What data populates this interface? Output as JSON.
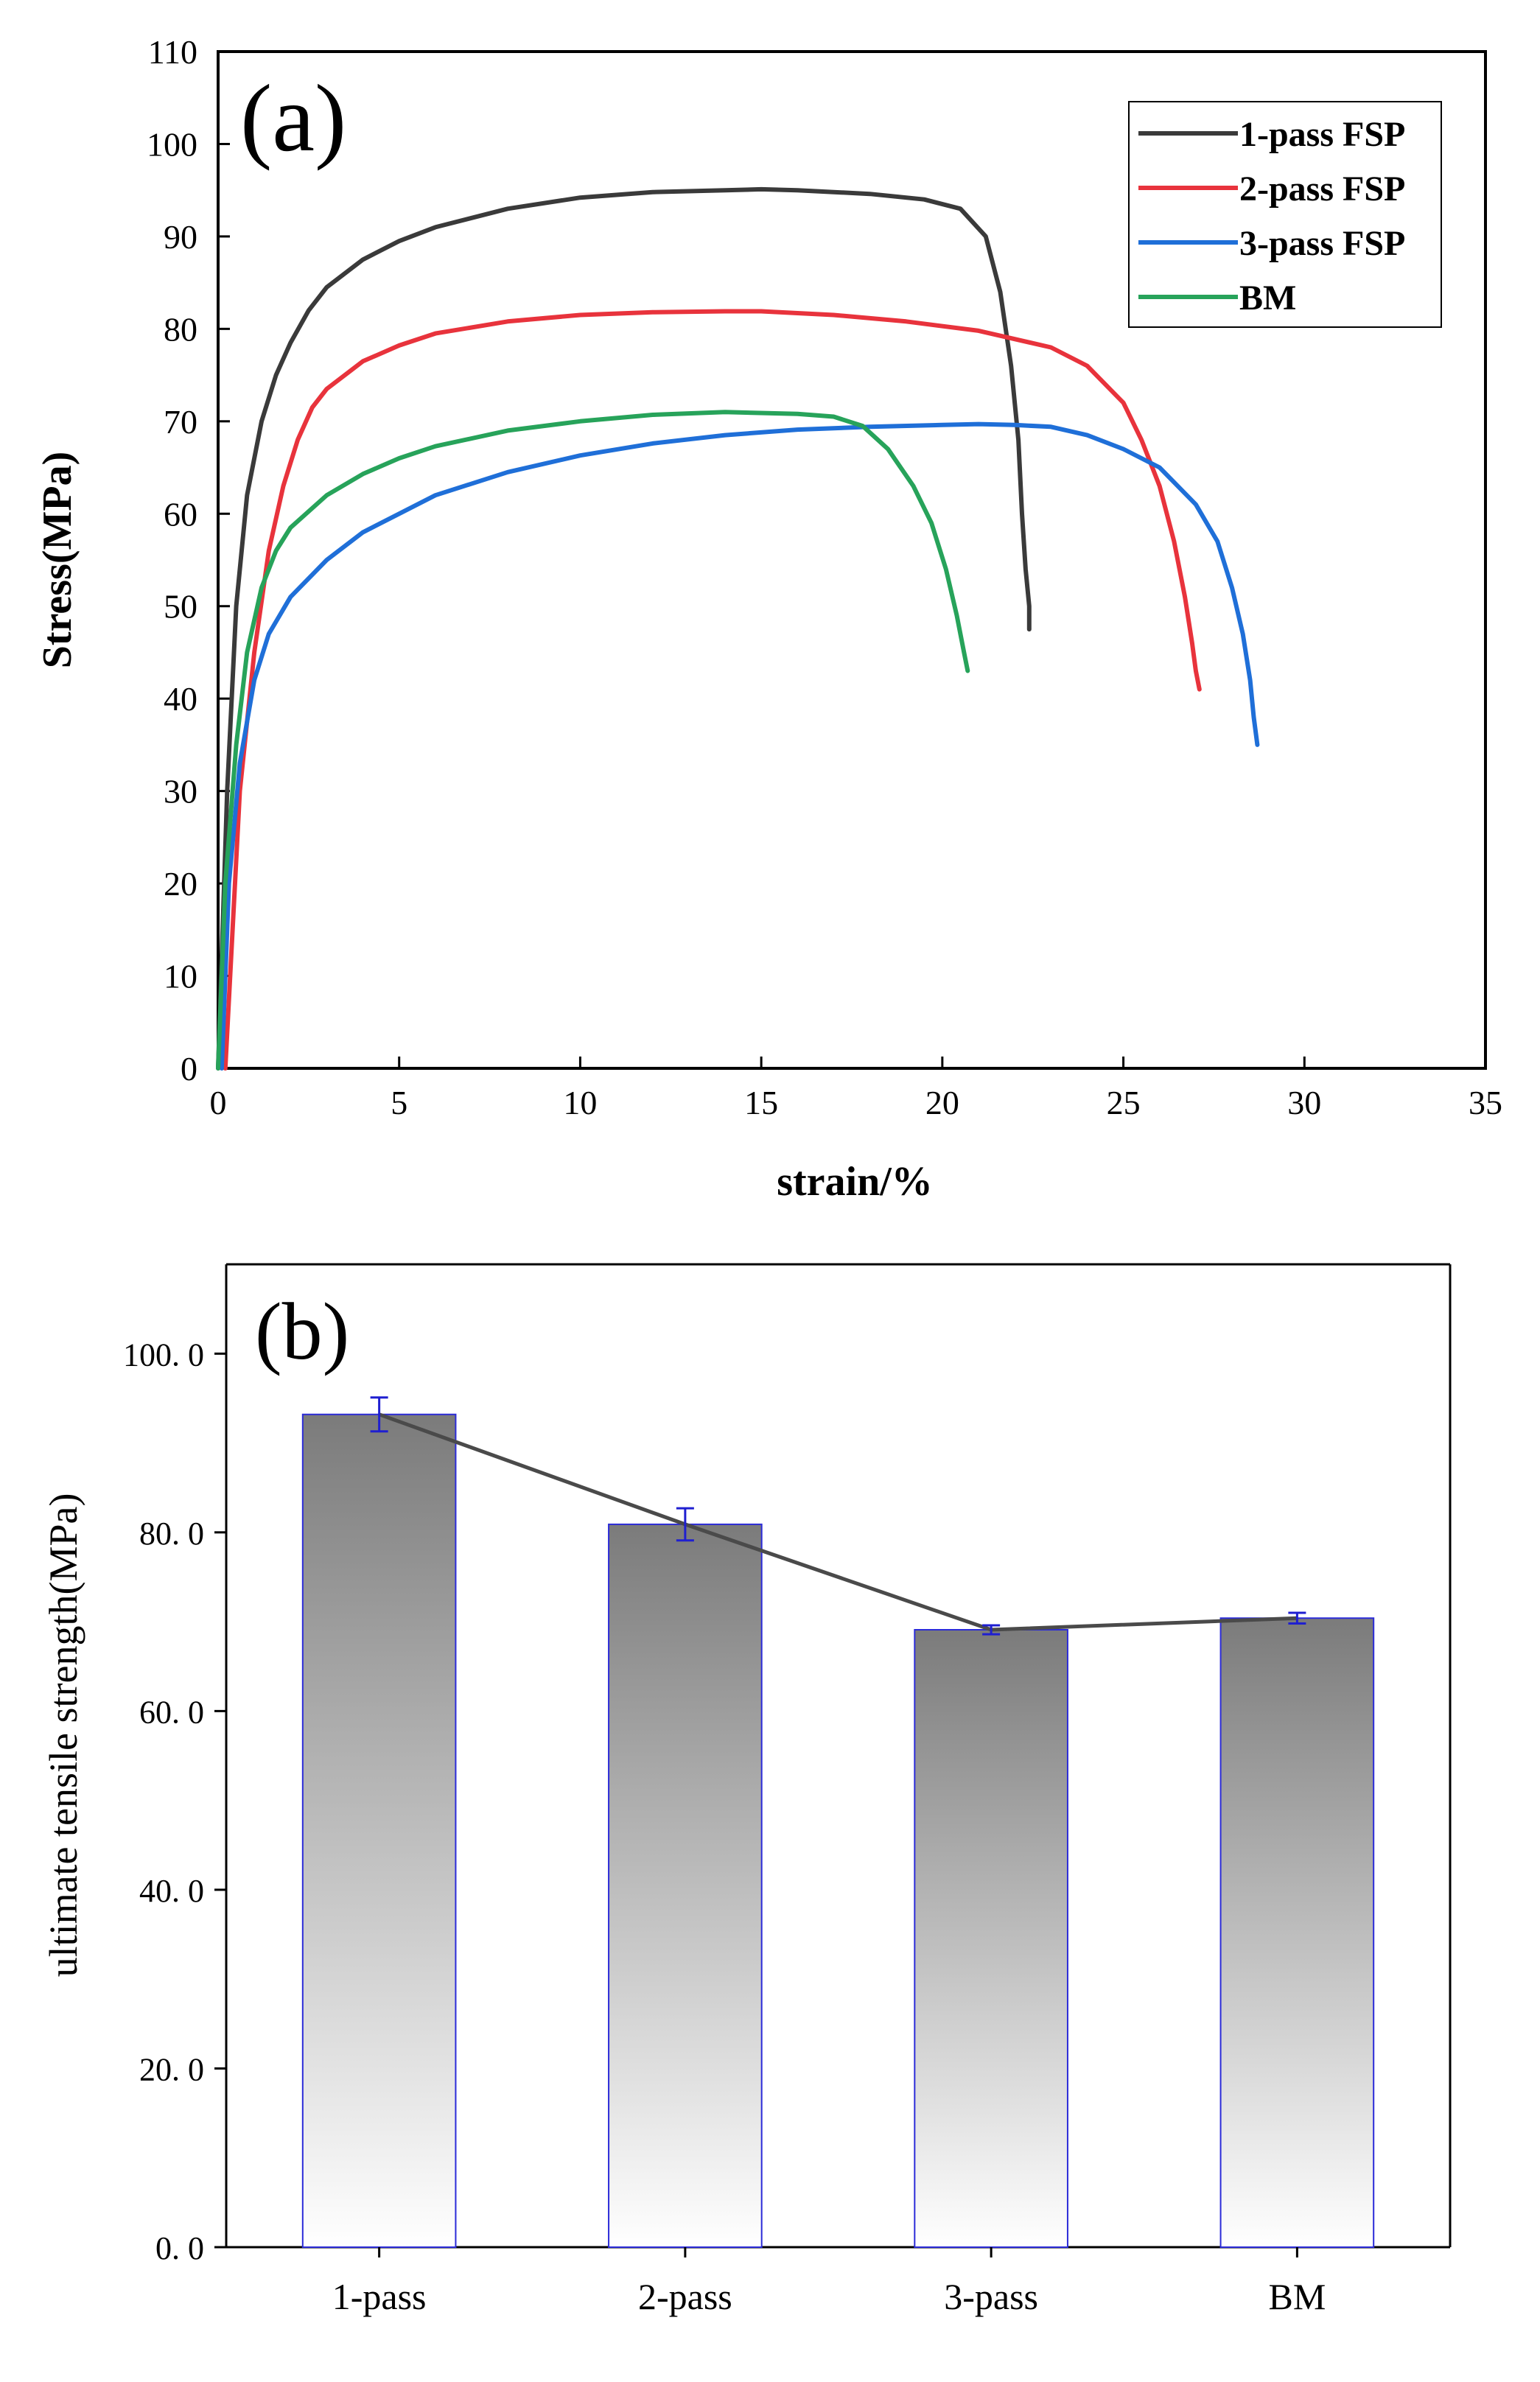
{
  "colors": {
    "series": [
      "#3a3a3a",
      "#e8333c",
      "#1f6fd8",
      "#27a35a"
    ],
    "bar_fill_top": "#7b7b7b",
    "bar_fill_bottom": "#ffffff",
    "bar_edge": "#2b2bd8",
    "error_bar": "#1f1fd0",
    "trend_line": "#4a4a4a",
    "axis": "#000000"
  },
  "chart_data": [
    {
      "type": "line",
      "panel_label": "(a)",
      "xlabel": "strain/%",
      "ylabel": "Stress(MPa)",
      "xlim": [
        0,
        35
      ],
      "ylim": [
        0,
        110
      ],
      "xticks": [
        0,
        5,
        10,
        15,
        20,
        25,
        30,
        35
      ],
      "yticks": [
        0,
        10,
        20,
        30,
        40,
        50,
        60,
        70,
        80,
        90,
        100,
        110
      ],
      "legend_position": "top-right",
      "grid": false,
      "series": [
        {
          "name": "1-pass FSP",
          "x": [
            0,
            0.25,
            0.5,
            0.8,
            1.2,
            1.6,
            2.0,
            2.5,
            3.0,
            4.0,
            5.0,
            6.0,
            8.0,
            10.0,
            12.0,
            14.0,
            15.0,
            16.0,
            18.0,
            19.5,
            20.5,
            21.2,
            21.6,
            21.9,
            22.1,
            22.2,
            22.3,
            22.4,
            22.4
          ],
          "y": [
            0,
            30,
            50,
            62,
            70,
            75,
            78.5,
            82,
            84.5,
            87.5,
            89.5,
            91,
            93,
            94.2,
            94.8,
            95.0,
            95.1,
            95.0,
            94.6,
            94,
            93,
            90,
            84,
            76,
            68,
            60,
            54,
            50,
            47.5
          ]
        },
        {
          "name": "2-pass FSP",
          "x": [
            0.2,
            0.6,
            1.0,
            1.4,
            1.8,
            2.2,
            2.6,
            3.0,
            4.0,
            5.0,
            6.0,
            8.0,
            10.0,
            12.0,
            14.0,
            15.0,
            17.0,
            19.0,
            21.0,
            23.0,
            24.0,
            25.0,
            25.5,
            26.0,
            26.4,
            26.7,
            26.9,
            27.0,
            27.1
          ],
          "y": [
            0,
            30,
            45,
            56,
            63,
            68,
            71.5,
            73.5,
            76.5,
            78.2,
            79.5,
            80.8,
            81.5,
            81.8,
            81.9,
            81.9,
            81.5,
            80.8,
            79.8,
            78,
            76,
            72,
            68,
            63,
            57,
            51,
            46,
            43,
            41
          ]
        },
        {
          "name": "3-pass FSP",
          "x": [
            0.1,
            0.3,
            0.6,
            1.0,
            1.4,
            2.0,
            3.0,
            4.0,
            5.0,
            6.0,
            8.0,
            10.0,
            12.0,
            14.0,
            16.0,
            18.0,
            20.0,
            21.0,
            22.0,
            23.0,
            24.0,
            25.0,
            26.0,
            27.0,
            27.6,
            28.0,
            28.3,
            28.5,
            28.6,
            28.7
          ],
          "y": [
            0,
            20,
            33,
            42,
            47,
            51,
            55,
            58,
            60,
            62,
            64.5,
            66.3,
            67.6,
            68.5,
            69.1,
            69.4,
            69.6,
            69.7,
            69.6,
            69.4,
            68.5,
            67,
            65,
            61,
            57,
            52,
            47,
            42,
            38,
            35
          ]
        },
        {
          "name": "BM",
          "x": [
            0,
            0.2,
            0.5,
            0.8,
            1.2,
            1.6,
            2.0,
            3.0,
            4.0,
            5.0,
            6.0,
            8.0,
            10.0,
            12.0,
            14.0,
            16.0,
            17.0,
            17.8,
            18.5,
            19.2,
            19.7,
            20.1,
            20.4,
            20.6,
            20.7
          ],
          "y": [
            0,
            20,
            35,
            45,
            52,
            56,
            58.5,
            62,
            64.3,
            66,
            67.3,
            69,
            70,
            70.7,
            71,
            70.8,
            70.5,
            69.5,
            67,
            63,
            59,
            54,
            49,
            45,
            43
          ]
        }
      ]
    },
    {
      "type": "bar",
      "panel_label": "(b)",
      "xlabel": "",
      "ylabel": "ultimate tensile strength(MPa)",
      "ylim": [
        0,
        110
      ],
      "yticks": [
        0,
        20,
        40,
        60,
        80,
        100
      ],
      "ytick_labels": [
        "0. 0",
        "20. 0",
        "40. 0",
        "60. 0",
        "80. 0",
        "100. 0"
      ],
      "categories": [
        "1-pass",
        "2-pass",
        "3-pass",
        "BM"
      ],
      "values": [
        93.2,
        80.9,
        69.1,
        70.4
      ],
      "error": [
        1.9,
        1.8,
        0.5,
        0.6
      ],
      "trend_line": true,
      "grid": false
    }
  ]
}
